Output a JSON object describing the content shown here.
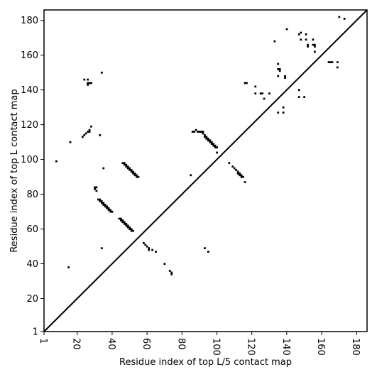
{
  "chart_data": {
    "type": "scatter",
    "title": "",
    "xlabel": "Residue index of top L/5 contact map",
    "ylabel": "Residue index of top L contact map",
    "xlim": [
      1,
      186
    ],
    "ylim": [
      1,
      186
    ],
    "xticks": [
      1,
      20,
      40,
      60,
      80,
      100,
      120,
      140,
      160,
      180
    ],
    "yticks": [
      1,
      20,
      40,
      60,
      80,
      100,
      120,
      140,
      160,
      180
    ],
    "xtick_labels": [
      "1",
      "20",
      "40",
      "60",
      "80",
      "100",
      "120",
      "140",
      "160",
      "180"
    ],
    "ytick_labels": [
      "1",
      "20",
      "40",
      "60",
      "80",
      "100",
      "120",
      "140",
      "160",
      "180"
    ],
    "x_tick_label_rotation_deg": -90,
    "grid": false,
    "diagonal": true,
    "colors": {
      "point": "#000000",
      "diagonal": "#000000",
      "frame": "#000000",
      "background": "#ffffff"
    },
    "series": [
      {
        "points": [
          [
            8,
            99
          ],
          [
            15,
            38
          ],
          [
            16,
            110
          ],
          [
            23,
            113
          ],
          [
            24,
            114
          ],
          [
            25,
            115
          ],
          [
            26,
            116
          ],
          [
            27,
            116
          ],
          [
            27,
            117
          ],
          [
            28,
            119
          ],
          [
            24,
            146
          ],
          [
            26,
            146
          ],
          [
            26,
            143
          ],
          [
            26,
            144
          ],
          [
            27,
            144
          ],
          [
            28,
            144
          ],
          [
            30,
            84
          ],
          [
            30,
            83
          ],
          [
            31,
            84
          ],
          [
            31,
            82
          ],
          [
            32,
            77
          ],
          [
            33,
            77
          ],
          [
            33,
            76
          ],
          [
            34,
            76
          ],
          [
            34,
            75
          ],
          [
            35,
            75
          ],
          [
            35,
            74
          ],
          [
            36,
            74
          ],
          [
            36,
            73
          ],
          [
            37,
            73
          ],
          [
            37,
            72
          ],
          [
            38,
            72
          ],
          [
            38,
            71
          ],
          [
            39,
            71
          ],
          [
            39,
            70
          ],
          [
            40,
            70
          ],
          [
            33,
            114
          ],
          [
            34,
            150
          ],
          [
            35,
            95
          ],
          [
            34,
            49
          ],
          [
            44,
            66
          ],
          [
            45,
            66
          ],
          [
            45,
            65
          ],
          [
            46,
            65
          ],
          [
            46,
            64
          ],
          [
            47,
            64
          ],
          [
            47,
            63
          ],
          [
            48,
            63
          ],
          [
            48,
            62
          ],
          [
            49,
            62
          ],
          [
            49,
            61
          ],
          [
            50,
            61
          ],
          [
            50,
            60
          ],
          [
            51,
            60
          ],
          [
            51,
            59
          ],
          [
            52,
            59
          ],
          [
            46,
            98
          ],
          [
            47,
            98
          ],
          [
            47,
            97
          ],
          [
            48,
            97
          ],
          [
            48,
            96
          ],
          [
            49,
            96
          ],
          [
            49,
            95
          ],
          [
            50,
            95
          ],
          [
            50,
            94
          ],
          [
            51,
            94
          ],
          [
            51,
            93
          ],
          [
            52,
            93
          ],
          [
            52,
            92
          ],
          [
            53,
            92
          ],
          [
            53,
            91
          ],
          [
            54,
            91
          ],
          [
            54,
            90
          ],
          [
            55,
            90
          ],
          [
            58,
            52
          ],
          [
            59,
            51
          ],
          [
            60,
            50
          ],
          [
            61,
            49
          ],
          [
            61,
            48
          ],
          [
            63,
            48
          ],
          [
            65,
            47
          ],
          [
            70,
            40
          ],
          [
            73,
            36
          ],
          [
            74,
            35
          ],
          [
            74,
            34
          ],
          [
            85,
            91
          ],
          [
            86,
            116
          ],
          [
            87,
            116
          ],
          [
            88,
            117
          ],
          [
            89,
            116
          ],
          [
            90,
            116
          ],
          [
            91,
            116
          ],
          [
            92,
            115
          ],
          [
            92,
            116
          ],
          [
            93,
            114
          ],
          [
            93,
            113
          ],
          [
            94,
            113
          ],
          [
            94,
            112
          ],
          [
            95,
            112
          ],
          [
            95,
            111
          ],
          [
            96,
            111
          ],
          [
            96,
            110
          ],
          [
            97,
            110
          ],
          [
            97,
            109
          ],
          [
            98,
            109
          ],
          [
            98,
            108
          ],
          [
            99,
            108
          ],
          [
            99,
            107
          ],
          [
            100,
            107
          ],
          [
            100,
            104
          ],
          [
            93,
            49
          ],
          [
            95,
            47
          ],
          [
            107,
            98
          ],
          [
            109,
            96
          ],
          [
            110,
            95
          ],
          [
            111,
            94
          ],
          [
            112,
            93
          ],
          [
            112,
            92
          ],
          [
            113,
            92
          ],
          [
            113,
            91
          ],
          [
            114,
            91
          ],
          [
            114,
            90
          ],
          [
            115,
            90
          ],
          [
            116,
            87
          ],
          [
            116,
            144
          ],
          [
            117,
            144
          ],
          [
            122,
            142
          ],
          [
            122,
            138
          ],
          [
            125,
            138
          ],
          [
            126,
            138
          ],
          [
            127,
            135
          ],
          [
            130,
            138
          ],
          [
            133,
            168
          ],
          [
            135,
            155
          ],
          [
            135,
            152
          ],
          [
            136,
            152
          ],
          [
            136,
            151
          ],
          [
            135,
            148
          ],
          [
            135,
            127
          ],
          [
            138,
            127
          ],
          [
            138,
            130
          ],
          [
            139,
            148
          ],
          [
            139,
            147
          ],
          [
            140,
            175
          ],
          [
            147,
            172
          ],
          [
            148,
            173
          ],
          [
            148,
            169
          ],
          [
            147,
            140
          ],
          [
            147,
            136
          ],
          [
            150,
            136
          ],
          [
            151,
            172
          ],
          [
            151,
            169
          ],
          [
            152,
            166
          ],
          [
            152,
            165
          ],
          [
            155,
            166
          ],
          [
            155,
            169
          ],
          [
            156,
            166
          ],
          [
            156,
            165
          ],
          [
            156,
            162
          ],
          [
            164,
            156
          ],
          [
            165,
            156
          ],
          [
            166,
            156
          ],
          [
            169,
            156
          ],
          [
            169,
            153
          ],
          [
            170,
            182
          ],
          [
            173,
            181
          ]
        ]
      }
    ]
  }
}
